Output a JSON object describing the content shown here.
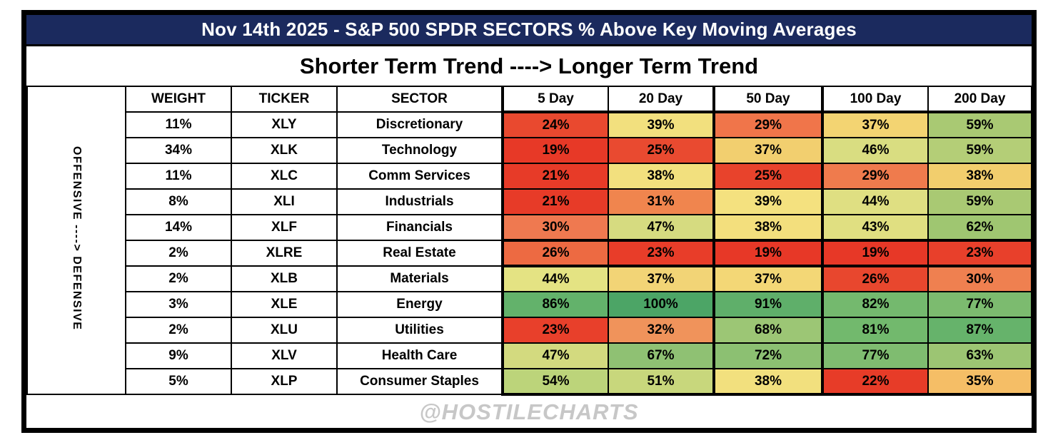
{
  "title": "Nov 14th 2025 - S&P 500 SPDR SECTORS % Above Key Moving Averages",
  "subtitle": "Shorter Term Trend ----> Longer Term Trend",
  "side_label": "OFFENSIVE ----> DEFENSIVE",
  "watermark": "@HOSTILECHARTS",
  "colors": {
    "title_bg": "#1b2a5e",
    "title_text": "#ffffff",
    "frame_border": "#000000",
    "watermark_text": "#c7c7c7"
  },
  "chart_data": {
    "type": "heatmap",
    "title": "Nov 14th 2025 - S&P 500 SPDR SECTORS % Above Key Moving Averages",
    "value_unit": "%",
    "columns": [
      "WEIGHT",
      "TICKER",
      "SECTOR",
      "5 Day",
      "20 Day",
      "50 Day",
      "100 Day",
      "200 Day"
    ],
    "ma_columns": [
      "5 Day",
      "20 Day",
      "50 Day",
      "100 Day",
      "200 Day"
    ],
    "rows": [
      {
        "weight": 11,
        "ticker": "XLY",
        "sector": "Discretionary",
        "values": [
          24,
          39,
          29,
          37,
          59
        ],
        "cell_colors": [
          "#e9492f",
          "#f2e07e",
          "#f0754a",
          "#f3d472",
          "#a9c973"
        ]
      },
      {
        "weight": 34,
        "ticker": "XLK",
        "sector": "Technology",
        "values": [
          19,
          25,
          37,
          46,
          59
        ],
        "cell_colors": [
          "#e73927",
          "#e94a30",
          "#f2cf6f",
          "#d9dd81",
          "#b4ce77"
        ]
      },
      {
        "weight": 11,
        "ticker": "XLC",
        "sector": "Comm Services",
        "values": [
          21,
          38,
          25,
          29,
          38
        ],
        "cell_colors": [
          "#e73b28",
          "#f2e07e",
          "#e8432c",
          "#ef7b4d",
          "#f2ce6d"
        ]
      },
      {
        "weight": 8,
        "ticker": "XLI",
        "sector": "Industrials",
        "values": [
          21,
          31,
          39,
          44,
          59
        ],
        "cell_colors": [
          "#e73b28",
          "#f0854e",
          "#f4e17f",
          "#dfdf82",
          "#a9c973"
        ]
      },
      {
        "weight": 14,
        "ticker": "XLF",
        "sector": "Financials",
        "values": [
          30,
          47,
          38,
          43,
          62
        ],
        "cell_colors": [
          "#ef7950",
          "#d6db80",
          "#f3df7d",
          "#e0df81",
          "#9fc671"
        ]
      },
      {
        "weight": 2,
        "ticker": "XLRE",
        "sector": "Real Estate",
        "values": [
          26,
          23,
          19,
          19,
          23
        ],
        "cell_colors": [
          "#ed6a42",
          "#e83d29",
          "#e73827",
          "#e73827",
          "#e8402b"
        ]
      },
      {
        "weight": 2,
        "ticker": "XLB",
        "sector": "Materials",
        "values": [
          44,
          37,
          37,
          26,
          30
        ],
        "cell_colors": [
          "#e4e383",
          "#f2d476",
          "#f3d776",
          "#e8472e",
          "#ef8050"
        ]
      },
      {
        "weight": 3,
        "ticker": "XLE",
        "sector": "Energy",
        "values": [
          86,
          100,
          91,
          82,
          77
        ],
        "cell_colors": [
          "#63b26b",
          "#4ca566",
          "#5faf6a",
          "#74b96e",
          "#7cbb6f"
        ]
      },
      {
        "weight": 2,
        "ticker": "XLU",
        "sector": "Utilities",
        "values": [
          23,
          32,
          68,
          81,
          87
        ],
        "cell_colors": [
          "#e8402b",
          "#f0935b",
          "#9cc675",
          "#72b96d",
          "#66b36b"
        ]
      },
      {
        "weight": 9,
        "ticker": "XLV",
        "sector": "Health Care",
        "values": [
          47,
          67,
          72,
          77,
          63
        ],
        "cell_colors": [
          "#d3da7f",
          "#8fc173",
          "#8cc072",
          "#7fbc70",
          "#9cc573"
        ]
      },
      {
        "weight": 5,
        "ticker": "XLP",
        "sector": "Consumer Staples",
        "values": [
          54,
          51,
          38,
          22,
          35
        ],
        "cell_colors": [
          "#bcd47a",
          "#c8d77c",
          "#f2e07e",
          "#e73c28",
          "#f5be66"
        ]
      }
    ]
  }
}
